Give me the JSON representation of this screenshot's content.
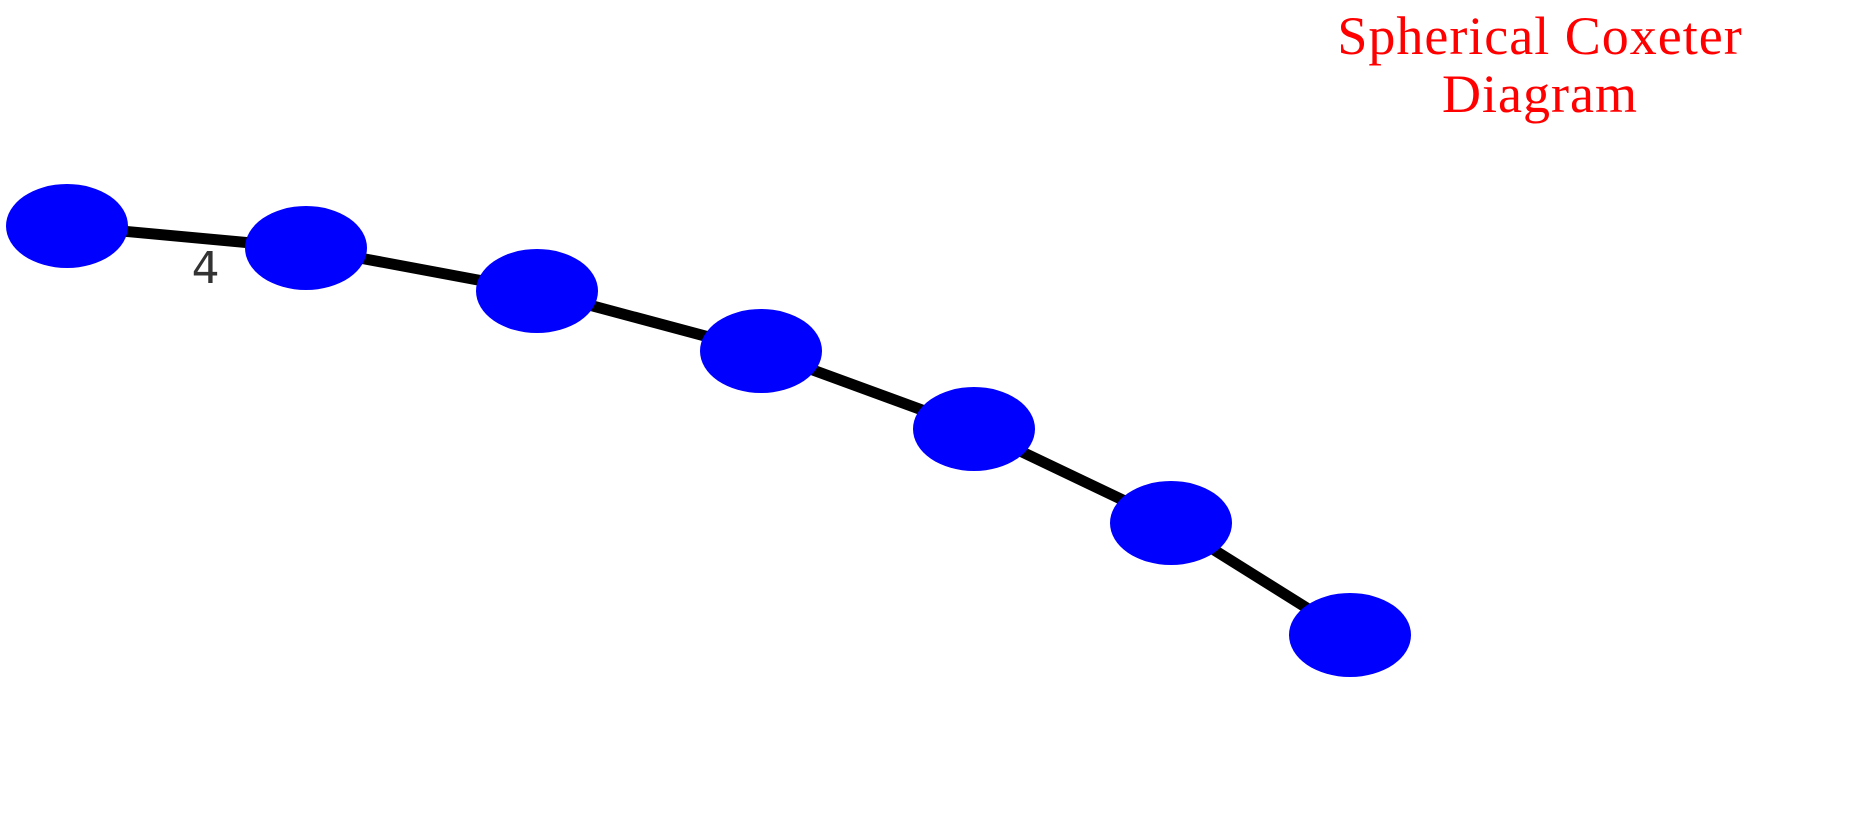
{
  "title": {
    "line1": "Spherical Coxeter",
    "line2": "Diagram"
  },
  "diagram": {
    "nodes": [
      {
        "id": "n1"
      },
      {
        "id": "n2"
      },
      {
        "id": "n3"
      },
      {
        "id": "n4"
      },
      {
        "id": "n5"
      },
      {
        "id": "n6"
      },
      {
        "id": "n7"
      }
    ],
    "edges": [
      {
        "from": "n1",
        "to": "n2",
        "label": "4"
      },
      {
        "from": "n2",
        "to": "n3",
        "label": ""
      },
      {
        "from": "n3",
        "to": "n4",
        "label": ""
      },
      {
        "from": "n4",
        "to": "n5",
        "label": ""
      },
      {
        "from": "n5",
        "to": "n6",
        "label": ""
      },
      {
        "from": "n6",
        "to": "n7",
        "label": ""
      }
    ]
  },
  "colors": {
    "node": "#0000ff",
    "edge": "#000000",
    "title": "#ff0000",
    "label": "#333333",
    "background": "#ffffff"
  }
}
